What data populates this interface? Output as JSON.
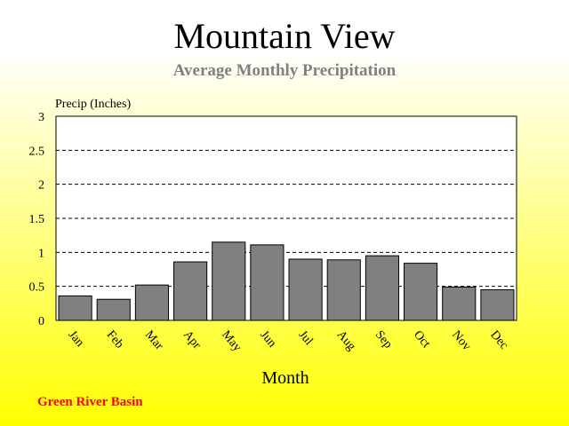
{
  "header": {
    "title": "Mountain View",
    "subtitle": "Average Monthly Precipitation"
  },
  "footer": {
    "text": "Green River Basin"
  },
  "colors": {
    "bar_fill": "#808080",
    "bar_stroke": "#000000",
    "grid": "#000000",
    "footer_text": "#ff0000",
    "subtitle_text": "#808080",
    "background_top": "#ffffff",
    "background_bottom": "#ffff00"
  },
  "chart_data": {
    "type": "bar",
    "title": "Mountain View",
    "subtitle": "Average Monthly Precipitation",
    "xlabel": "Month",
    "ylabel": "Precip (Inches)",
    "categories": [
      "Jan",
      "Feb",
      "Mar",
      "Apr",
      "May",
      "Jun",
      "Jul",
      "Aug",
      "Sep",
      "Oct",
      "Nov",
      "Dec"
    ],
    "values": [
      0.36,
      0.31,
      0.52,
      0.86,
      1.15,
      1.11,
      0.9,
      0.89,
      0.95,
      0.84,
      0.49,
      0.45
    ],
    "ylim": [
      0,
      3
    ],
    "yticks": [
      "0",
      "0.5",
      "1",
      "1.5",
      "2",
      "2.5",
      "3"
    ],
    "grid": "horizontal dashed",
    "legend": "none"
  }
}
